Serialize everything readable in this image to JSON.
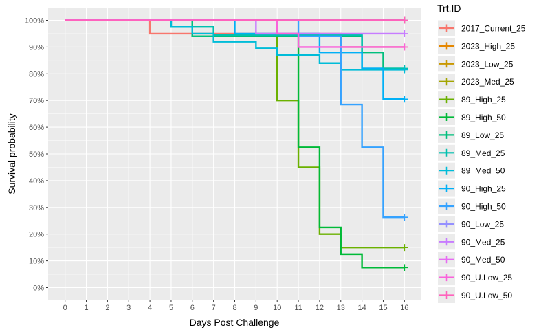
{
  "chart_data": {
    "type": "line",
    "step": true,
    "title": "",
    "xlabel": "Days Post Challenge",
    "ylabel": "Survival probability",
    "xlim": [
      -0.8,
      16.8
    ],
    "ylim": [
      -0.045,
      1.045
    ],
    "x_ticks": [
      0,
      1,
      2,
      3,
      4,
      5,
      6,
      7,
      8,
      9,
      10,
      11,
      12,
      13,
      14,
      15,
      16
    ],
    "y_ticks": [
      0,
      0.1,
      0.2,
      0.3,
      0.4,
      0.5,
      0.6,
      0.7,
      0.8,
      0.9,
      1.0
    ],
    "y_tick_labels": [
      "0%",
      "10%",
      "20%",
      "30%",
      "40%",
      "50%",
      "60%",
      "70%",
      "80%",
      "90%",
      "100%"
    ],
    "grid": true,
    "legend": {
      "title": "Trt.ID",
      "position": "right"
    },
    "series": [
      {
        "name": "2017_Current_25",
        "color": "#F8766D",
        "points": [
          [
            0,
            1.0
          ],
          [
            4,
            0.95
          ],
          [
            13,
            0.9
          ],
          [
            16,
            0.9
          ]
        ]
      },
      {
        "name": "2023_High_25",
        "color": "#E58700",
        "points": [
          [
            0,
            1.0
          ],
          [
            16,
            1.0
          ]
        ]
      },
      {
        "name": "2023_Low_25",
        "color": "#C99800",
        "points": [
          [
            0,
            1.0
          ],
          [
            16,
            1.0
          ]
        ]
      },
      {
        "name": "2023_Med_25",
        "color": "#A3A500",
        "points": [
          [
            0,
            1.0
          ],
          [
            16,
            1.0
          ]
        ]
      },
      {
        "name": "89_High_25",
        "color": "#6BB100",
        "points": [
          [
            0,
            1.0
          ],
          [
            6,
            0.94
          ],
          [
            10,
            0.7
          ],
          [
            11,
            0.45
          ],
          [
            12,
            0.2
          ],
          [
            13,
            0.15
          ],
          [
            16,
            0.15
          ]
        ]
      },
      {
        "name": "89_High_50",
        "color": "#00BA38",
        "points": [
          [
            0,
            1.0
          ],
          [
            6,
            0.94
          ],
          [
            11,
            0.525
          ],
          [
            12,
            0.225
          ],
          [
            13,
            0.125
          ],
          [
            14,
            0.075
          ],
          [
            16,
            0.075
          ]
        ]
      },
      {
        "name": "89_Low_25",
        "color": "#00BF7D",
        "points": [
          [
            0,
            1.0
          ],
          [
            6,
            0.94
          ],
          [
            14,
            0.88
          ],
          [
            15,
            0.82
          ],
          [
            16,
            0.82
          ]
        ]
      },
      {
        "name": "89_Med_25",
        "color": "#00C0AF",
        "points": [
          [
            0,
            1.0
          ],
          [
            5,
            0.975
          ],
          [
            7,
            0.945
          ],
          [
            14,
            0.82
          ],
          [
            16,
            0.82
          ]
        ]
      },
      {
        "name": "89_Med_50",
        "color": "#00BCD8",
        "points": [
          [
            0,
            1.0
          ],
          [
            5,
            0.975
          ],
          [
            6,
            0.95
          ],
          [
            7,
            0.92
          ],
          [
            9,
            0.895
          ],
          [
            10,
            0.87
          ],
          [
            12,
            0.84
          ],
          [
            13,
            0.815
          ],
          [
            16,
            0.815
          ]
        ]
      },
      {
        "name": "90_High_25",
        "color": "#00B0F6",
        "points": [
          [
            0,
            1.0
          ],
          [
            8,
            0.95
          ],
          [
            11,
            0.95
          ],
          [
            12,
            0.88
          ],
          [
            14,
            0.82
          ],
          [
            15,
            0.705
          ],
          [
            16,
            0.705
          ]
        ]
      },
      {
        "name": "90_High_50",
        "color": "#35A2FF",
        "points": [
          [
            0,
            1.0
          ],
          [
            11,
            0.94
          ],
          [
            13,
            0.685
          ],
          [
            14,
            0.525
          ],
          [
            15,
            0.263
          ],
          [
            16,
            0.263
          ]
        ]
      },
      {
        "name": "90_Low_25",
        "color": "#9590FF",
        "points": [
          [
            0,
            1.0
          ],
          [
            16,
            1.0
          ]
        ]
      },
      {
        "name": "90_Med_25",
        "color": "#C77CFF",
        "points": [
          [
            0,
            1.0
          ],
          [
            9,
            0.95
          ],
          [
            16,
            0.95
          ]
        ]
      },
      {
        "name": "90_Med_50",
        "color": "#E76BF3",
        "points": [
          [
            0,
            1.0
          ],
          [
            16,
            1.0
          ]
        ]
      },
      {
        "name": "90_U.Low_25",
        "color": "#FA62DB",
        "points": [
          [
            0,
            1.0
          ],
          [
            10,
            0.95
          ],
          [
            11,
            0.9
          ],
          [
            16,
            0.9
          ]
        ]
      },
      {
        "name": "90_U.Low_50",
        "color": "#FF62BC",
        "points": [
          [
            0,
            1.0
          ],
          [
            16,
            1.0
          ]
        ]
      }
    ]
  }
}
